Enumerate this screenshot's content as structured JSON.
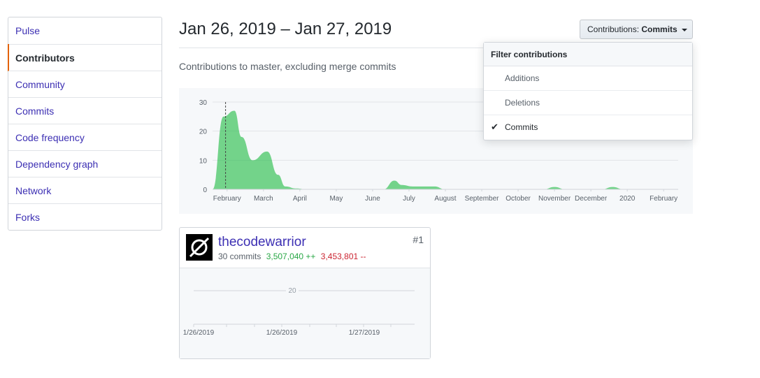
{
  "sidebar": {
    "items": [
      {
        "label": "Pulse"
      },
      {
        "label": "Contributors",
        "selected": true
      },
      {
        "label": "Community"
      },
      {
        "label": "Commits"
      },
      {
        "label": "Code frequency"
      },
      {
        "label": "Dependency graph"
      },
      {
        "label": "Network"
      },
      {
        "label": "Forks"
      }
    ]
  },
  "header": {
    "date_range": "Jan 26, 2019 – Jan 27, 2019",
    "subtitle": "Contributions to master, excluding merge commits"
  },
  "contributions_button": {
    "prefix": "Contributions:",
    "value": "Commits"
  },
  "filter_dropdown": {
    "header": "Filter contributions",
    "options": [
      {
        "label": "Additions",
        "checked": false
      },
      {
        "label": "Deletions",
        "checked": false
      },
      {
        "label": "Commits",
        "checked": true
      }
    ]
  },
  "colors": {
    "accent_selected": "#e36209",
    "link": "#0366d6",
    "area_fill": "#2cbe4e",
    "additions": "#28a745",
    "deletions": "#cb2431"
  },
  "chart_data": [
    {
      "type": "area",
      "ylim": [
        0,
        30
      ],
      "yticks": [
        0,
        10,
        20,
        30
      ],
      "x_tick_labels": [
        "February",
        "March",
        "April",
        "May",
        "June",
        "July",
        "August",
        "September",
        "October",
        "November",
        "December",
        "2020",
        "February"
      ],
      "series": [
        {
          "x": [
            0.0,
            0.3,
            0.6,
            0.8,
            1.1,
            1.5,
            1.8,
            2.0,
            2.3,
            2.6,
            3.0,
            4.0,
            4.7,
            5.0,
            5.2,
            5.5,
            5.9,
            6.1,
            6.4,
            6.7,
            7.0,
            7.5,
            9.1,
            9.4,
            9.7,
            10.0,
            10.7,
            11.0,
            11.3,
            11.8,
            12.8
          ],
          "values": [
            0,
            25,
            27,
            18,
            10,
            13,
            5,
            1,
            0.3,
            0,
            0,
            0,
            0,
            3,
            1.5,
            1,
            1,
            1,
            0,
            0,
            0,
            0,
            0,
            0.8,
            0,
            0,
            0,
            0.8,
            0,
            0,
            0
          ]
        }
      ],
      "grid": true,
      "marker": "February"
    },
    {
      "type": "line",
      "yticks": [
        20
      ],
      "x_tick_labels": [
        "1/26/2019",
        "1/26/2019",
        "1/27/2019"
      ],
      "grid": true
    }
  ],
  "contributor": {
    "rank": "#1",
    "username": "thecodewarrior",
    "commits": "30 commits",
    "additions": "3,507,040 ++",
    "deletions": "3,453,801 --"
  }
}
